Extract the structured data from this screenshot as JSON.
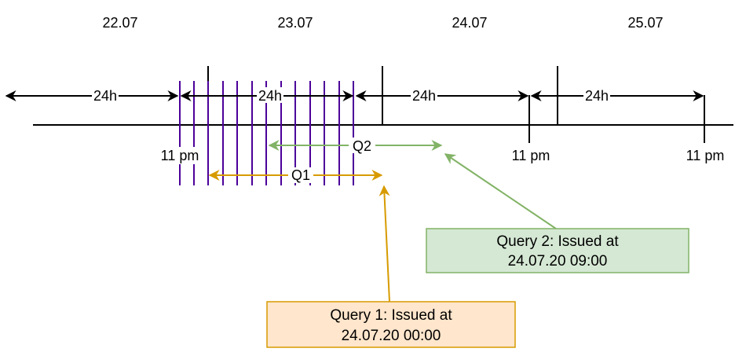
{
  "dates": [
    "22.07",
    "23.07",
    "24.07",
    "25.07"
  ],
  "interval_label": "24h",
  "time_label": "11 pm",
  "q1_label": "Q1",
  "q2_label": "Q2",
  "query1": {
    "line1": "Query 1: Issued at",
    "line2": "24.07.20 00:00"
  },
  "query2": {
    "line1": "Query 2: Issued at",
    "line2": "24.07.20 09:00"
  },
  "colors": {
    "q1": "#D79B00",
    "q2": "#82B366",
    "partition": "#4C0099",
    "query1_fill": "#FFE6CC",
    "query2_fill": "#D5E8D4"
  }
}
